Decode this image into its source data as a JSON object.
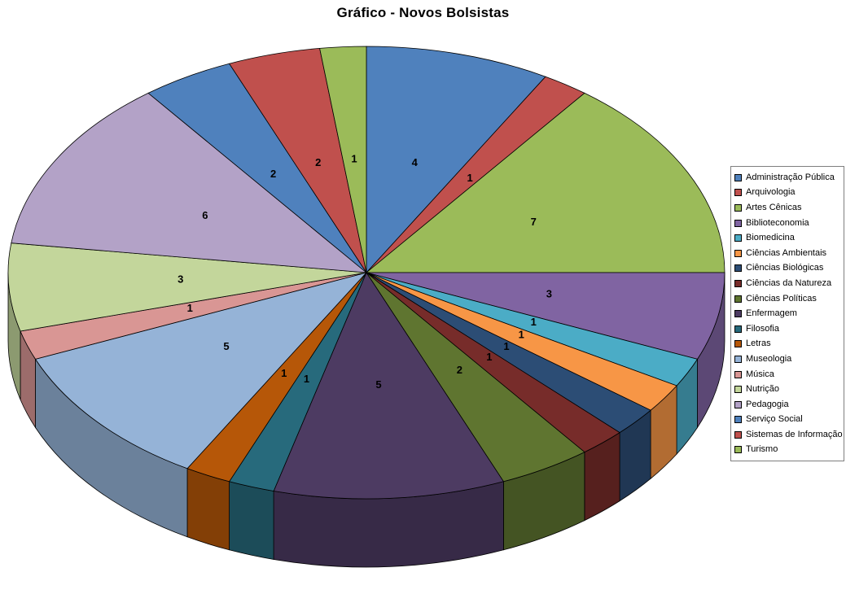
{
  "chart_data": {
    "type": "pie",
    "effect": "3d",
    "title": "Gráfico - Novos Bolsistas",
    "legend_position": "right",
    "data_labels": "value",
    "start_angle_deg_from_top": 0,
    "direction": "clockwise",
    "total": 48,
    "categories": [
      "Administração Pública",
      "Arquivologia",
      "Artes Cênicas",
      "Biblioteconomia",
      "Biomedicina",
      "Ciências Ambientais",
      "Ciências Biológicas",
      "Ciências da Natureza",
      "Ciências Políticas",
      "Enfermagem",
      "Filosofia",
      "Letras",
      "Museologia",
      "Música",
      "Nutrição",
      "Pedagogia",
      "Serviço Social",
      "Sistemas de Informação",
      "Turismo"
    ],
    "values": [
      4,
      1,
      7,
      3,
      1,
      1,
      1,
      1,
      2,
      5,
      1,
      1,
      5,
      1,
      3,
      6,
      2,
      2,
      1
    ],
    "colors": [
      "#4F81BD",
      "#C0504D",
      "#9BBB59",
      "#8064A2",
      "#4BACC6",
      "#F79646",
      "#2C4D75",
      "#772C2A",
      "#5F7530",
      "#4D3B62",
      "#276A7C",
      "#B65708",
      "#95B3D7",
      "#D99694",
      "#C3D69B",
      "#B3A2C7",
      "#4F81BD",
      "#C0504D",
      "#9BBB59"
    ],
    "background": "#FFFFFF"
  }
}
